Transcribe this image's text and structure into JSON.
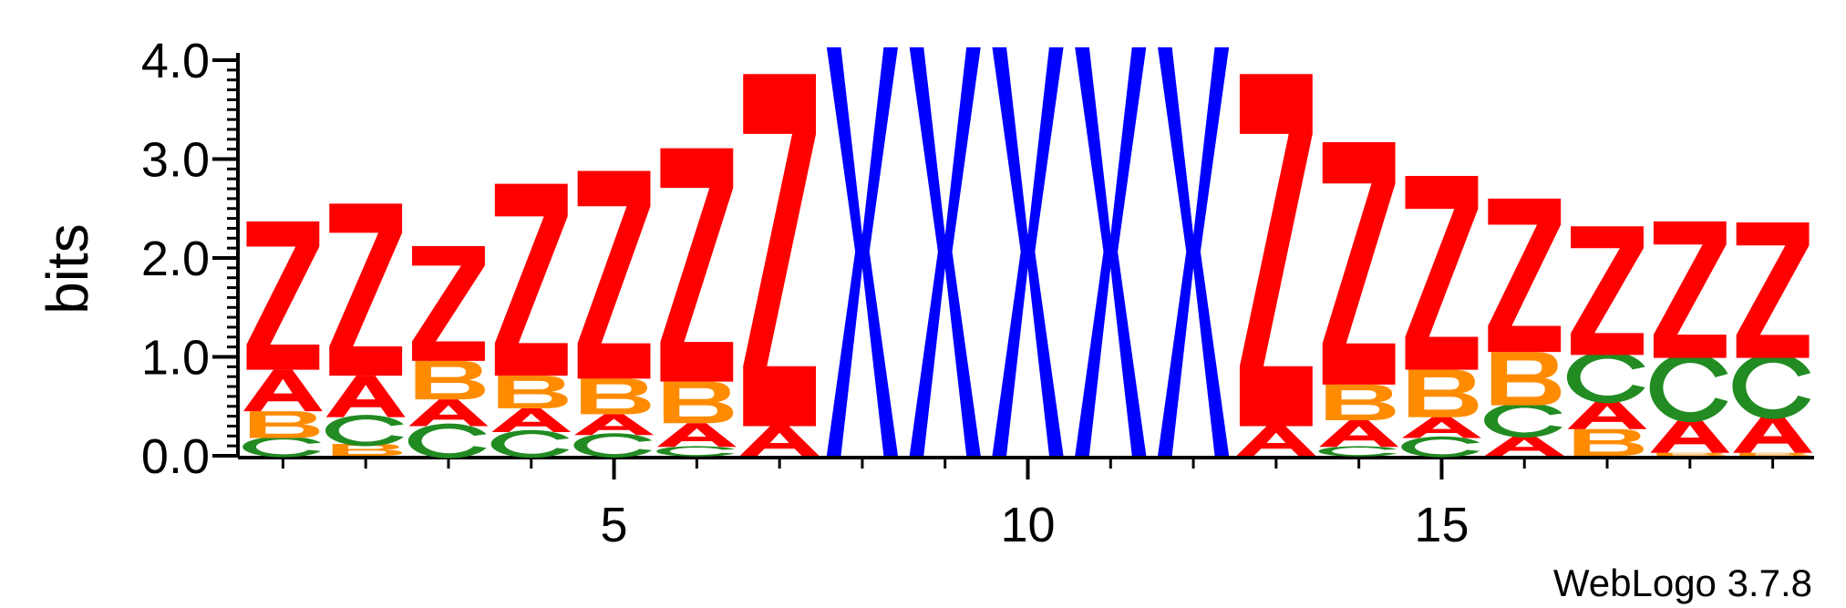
{
  "chart_data": {
    "type": "sequence-logo",
    "ylabel": "bits",
    "ylim": [
      0,
      4
    ],
    "y_ticks": [
      {
        "value": 0,
        "label": "0.0"
      },
      {
        "value": 1,
        "label": "1.0"
      },
      {
        "value": 2,
        "label": "2.0"
      },
      {
        "value": 3,
        "label": "3.0"
      },
      {
        "value": 4,
        "label": "4.0"
      }
    ],
    "x_ticks": [
      {
        "value": 5,
        "label": "5"
      },
      {
        "value": 10,
        "label": "10"
      },
      {
        "value": 15,
        "label": "15"
      }
    ],
    "positions": 19,
    "colors": {
      "Z": "#ff0000",
      "A": "#ff0000",
      "X": "#0000ff",
      "B": "#ff8c00",
      "C": "#228b22"
    },
    "stacks": [
      {
        "position": 1,
        "letters": [
          {
            "letter": "C",
            "height": 0.18
          },
          {
            "letter": "B",
            "height": 0.27
          },
          {
            "letter": "A",
            "height": 0.42
          },
          {
            "letter": "Z",
            "height": 1.5
          }
        ]
      },
      {
        "position": 2,
        "letters": [
          {
            "letter": "B",
            "height": 0.12
          },
          {
            "letter": "C",
            "height": 0.27
          },
          {
            "letter": "A",
            "height": 0.42
          },
          {
            "letter": "Z",
            "height": 1.74
          }
        ]
      },
      {
        "position": 3,
        "letters": [
          {
            "letter": "C",
            "height": 0.3
          },
          {
            "letter": "A",
            "height": 0.27
          },
          {
            "letter": "B",
            "height": 0.39
          },
          {
            "letter": "Z",
            "height": 1.16
          }
        ]
      },
      {
        "position": 4,
        "letters": [
          {
            "letter": "C",
            "height": 0.24
          },
          {
            "letter": "A",
            "height": 0.24
          },
          {
            "letter": "B",
            "height": 0.33
          },
          {
            "letter": "Z",
            "height": 1.94
          }
        ]
      },
      {
        "position": 5,
        "letters": [
          {
            "letter": "C",
            "height": 0.21
          },
          {
            "letter": "A",
            "height": 0.21
          },
          {
            "letter": "B",
            "height": 0.36
          },
          {
            "letter": "Z",
            "height": 2.1
          }
        ]
      },
      {
        "position": 6,
        "letters": [
          {
            "letter": "C",
            "height": 0.09
          },
          {
            "letter": "A",
            "height": 0.24
          },
          {
            "letter": "B",
            "height": 0.42
          },
          {
            "letter": "Z",
            "height": 2.36
          }
        ]
      },
      {
        "position": 7,
        "letters": [
          {
            "letter": "A",
            "height": 0.3
          },
          {
            "letter": "Z",
            "height": 3.56
          }
        ]
      },
      {
        "position": 8,
        "letters": [
          {
            "letter": "X",
            "height": 4.13
          }
        ]
      },
      {
        "position": 9,
        "letters": [
          {
            "letter": "X",
            "height": 4.13
          }
        ]
      },
      {
        "position": 10,
        "letters": [
          {
            "letter": "X",
            "height": 4.13
          }
        ]
      },
      {
        "position": 11,
        "letters": [
          {
            "letter": "X",
            "height": 4.13
          }
        ]
      },
      {
        "position": 12,
        "letters": [
          {
            "letter": "X",
            "height": 4.13
          }
        ]
      },
      {
        "position": 13,
        "letters": [
          {
            "letter": "A",
            "height": 0.3
          },
          {
            "letter": "Z",
            "height": 3.56
          }
        ]
      },
      {
        "position": 14,
        "letters": [
          {
            "letter": "C",
            "height": 0.09
          },
          {
            "letter": "A",
            "height": 0.27
          },
          {
            "letter": "B",
            "height": 0.36
          },
          {
            "letter": "Z",
            "height": 2.45
          }
        ]
      },
      {
        "position": 15,
        "letters": [
          {
            "letter": "C",
            "height": 0.18
          },
          {
            "letter": "A",
            "height": 0.21
          },
          {
            "letter": "B",
            "height": 0.48
          },
          {
            "letter": "Z",
            "height": 1.96
          }
        ]
      },
      {
        "position": 16,
        "letters": [
          {
            "letter": "A",
            "height": 0.21
          },
          {
            "letter": "C",
            "height": 0.3
          },
          {
            "letter": "B",
            "height": 0.54
          },
          {
            "letter": "Z",
            "height": 1.55
          }
        ]
      },
      {
        "position": 17,
        "letters": [
          {
            "letter": "B",
            "height": 0.27
          },
          {
            "letter": "A",
            "height": 0.3
          },
          {
            "letter": "C",
            "height": 0.45
          },
          {
            "letter": "Z",
            "height": 1.3
          }
        ]
      },
      {
        "position": 18,
        "letters": [
          {
            "letter": "B",
            "height": 0.03
          },
          {
            "letter": "A",
            "height": 0.36
          },
          {
            "letter": "C",
            "height": 0.6
          },
          {
            "letter": "Z",
            "height": 1.38
          }
        ]
      },
      {
        "position": 19,
        "letters": [
          {
            "letter": "B",
            "height": 0.03
          },
          {
            "letter": "A",
            "height": 0.39
          },
          {
            "letter": "C",
            "height": 0.57
          },
          {
            "letter": "Z",
            "height": 1.37
          }
        ]
      }
    ]
  },
  "footer": {
    "credit": "WebLogo 3.7.8"
  }
}
